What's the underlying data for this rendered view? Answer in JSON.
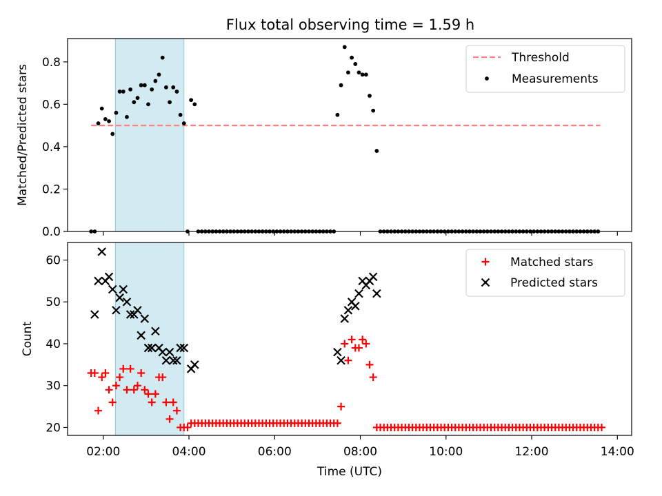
{
  "figure": {
    "title": "Flux total observing time = 1.59 h"
  },
  "chart_data": [
    {
      "type": "scatter",
      "ylabel": "Matched/Predicted stars",
      "xlabel": "",
      "xlim": [
        "01:10",
        "14:20"
      ],
      "ylim": [
        0,
        0.91
      ],
      "yticks": [
        0.0,
        0.2,
        0.4,
        0.6,
        0.8
      ],
      "ytick_labels": [
        "0.0",
        "0.2",
        "0.4",
        "0.6",
        "0.8"
      ],
      "grid": false,
      "legend_position": "top-right",
      "highlight_band": {
        "start": "02:17",
        "end": "03:53",
        "color": "#add8e6"
      },
      "threshold": {
        "name": "Threshold",
        "value": 0.5,
        "x_start": "01:43",
        "x_end": "13:36",
        "color": "#ff8080",
        "style": "dashed"
      },
      "series": [
        {
          "name": "Measurements",
          "color": "#000000",
          "marker": "dot",
          "x": [
            "01:43",
            "01:48",
            "01:53",
            "01:58",
            "02:03",
            "02:08",
            "02:13",
            "02:18",
            "02:23",
            "02:28",
            "02:33",
            "02:38",
            "02:43",
            "02:48",
            "02:53",
            "02:58",
            "03:03",
            "03:08",
            "03:13",
            "03:18",
            "03:23",
            "03:28",
            "03:33",
            "03:38",
            "03:43",
            "03:48",
            "03:53",
            "03:58",
            "04:03",
            "04:08",
            "07:28",
            "07:33",
            "07:38",
            "07:43",
            "07:48",
            "07:53",
            "07:58",
            "08:03",
            "08:08",
            "08:13",
            "08:18",
            "08:23"
          ],
          "y": [
            0.0,
            0.0,
            0.51,
            0.58,
            0.53,
            0.52,
            0.46,
            0.56,
            0.66,
            0.66,
            0.54,
            0.67,
            0.61,
            0.63,
            0.69,
            0.69,
            0.6,
            0.67,
            0.71,
            0.74,
            0.82,
            0.68,
            0.61,
            0.68,
            0.66,
            0.55,
            0.51,
            0.0,
            0.62,
            0.6,
            0.55,
            0.69,
            0.87,
            0.75,
            0.82,
            0.79,
            0.75,
            0.74,
            0.74,
            0.64,
            0.57,
            0.38
          ]
        }
      ],
      "zero_points": {
        "color": "#000000",
        "y": 0,
        "x_start": "04:13",
        "x_end": "13:33",
        "step_minutes": 5,
        "gaps": [
          [
            "07:24",
            "08:27"
          ]
        ]
      }
    },
    {
      "type": "scatter",
      "ylabel": "Count",
      "xlabel": "Time (UTC)",
      "xlim": [
        "01:10",
        "14:20"
      ],
      "ylim": [
        18.1,
        64.2
      ],
      "yticks": [
        20,
        30,
        40,
        50,
        60
      ],
      "ytick_labels": [
        "20",
        "30",
        "40",
        "50",
        "60"
      ],
      "xticks": [
        "02:00",
        "04:00",
        "06:00",
        "08:00",
        "10:00",
        "12:00",
        "14:00"
      ],
      "xtick_labels": [
        "02:00",
        "04:00",
        "06:00",
        "08:00",
        "10:00",
        "12:00",
        "14:00"
      ],
      "grid": false,
      "legend_position": "top-right",
      "highlight_band": {
        "start": "02:17",
        "end": "03:53",
        "color": "#add8e6"
      },
      "series": [
        {
          "name": "Matched stars",
          "color": "#ff0000",
          "marker": "plus",
          "x": [
            "01:43",
            "01:48",
            "01:53",
            "01:58",
            "02:03",
            "02:08",
            "02:13",
            "02:18",
            "02:23",
            "02:28",
            "02:33",
            "02:38",
            "02:43",
            "02:48",
            "02:53",
            "02:58",
            "03:03",
            "03:08",
            "03:13",
            "03:18",
            "03:23",
            "03:28",
            "03:33",
            "03:38",
            "03:43",
            "03:48",
            "03:53",
            "03:58",
            "04:03",
            "04:08",
            "07:28",
            "07:33",
            "07:38",
            "07:43",
            "07:48",
            "07:53",
            "07:58",
            "08:03",
            "08:08",
            "08:13",
            "08:18",
            "08:23"
          ],
          "y": [
            33,
            33,
            24,
            32,
            33,
            29,
            26,
            30,
            32,
            34,
            29,
            34,
            29,
            30,
            33,
            29,
            28,
            26,
            28,
            32,
            32,
            26,
            22,
            26,
            24,
            20,
            20,
            20,
            21,
            21,
            21,
            25,
            40,
            36,
            41,
            39,
            39,
            41,
            40,
            35,
            32,
            20
          ]
        },
        {
          "name": "Predicted stars",
          "color": "#000000",
          "marker": "x",
          "x": [
            "01:48",
            "01:53",
            "01:58",
            "02:03",
            "02:08",
            "02:13",
            "02:18",
            "02:23",
            "02:28",
            "02:33",
            "02:38",
            "02:43",
            "02:48",
            "02:53",
            "02:58",
            "03:03",
            "03:08",
            "03:13",
            "03:18",
            "03:23",
            "03:28",
            "03:33",
            "03:38",
            "03:43",
            "03:48",
            "03:53",
            "04:03",
            "04:08",
            "07:28",
            "07:33",
            "07:38",
            "07:43",
            "07:48",
            "07:53",
            "07:58",
            "08:03",
            "08:08",
            "08:13",
            "08:18",
            "08:23"
          ],
          "y": [
            47,
            55,
            62,
            55,
            56,
            53,
            48,
            51,
            53,
            50,
            47,
            47,
            48,
            42,
            46,
            39,
            39,
            43,
            39,
            38,
            36,
            38,
            36,
            36,
            39,
            39,
            34,
            35,
            38,
            36,
            46,
            48,
            50,
            49,
            52,
            55,
            54,
            55,
            56,
            52
          ]
        }
      ],
      "floor_points": {
        "series": "Matched stars",
        "color": "#ff0000",
        "y": 21,
        "x_start": "04:13",
        "x_end": "07:23",
        "step_minutes": 5
      },
      "floor_points_2": {
        "series": "Matched stars",
        "color": "#ff0000",
        "y": 20,
        "x_start": "08:28",
        "x_end": "13:38",
        "step_minutes": 5
      }
    }
  ]
}
